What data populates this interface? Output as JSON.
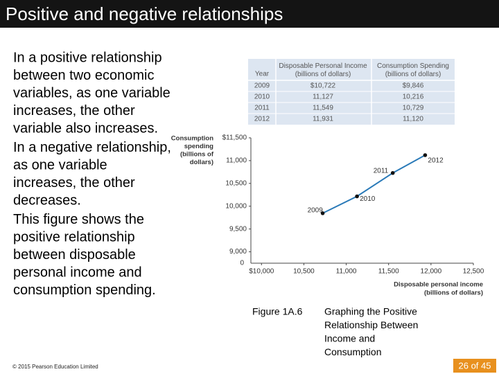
{
  "slide": {
    "title": "Positive and negative relationships",
    "paragraphs": [
      [
        "In a positive relationship",
        "between two economic",
        "variables, as one variable",
        "increases, the other",
        "variable also increases."
      ],
      [
        "In a negative relationship,",
        "as one variable",
        "increases, the other",
        "decreases."
      ],
      [
        "This figure shows the",
        "positive relationship",
        "between disposable",
        "personal income and",
        "consumption spending."
      ]
    ],
    "figure_number": "Figure 1A.6",
    "figure_caption": [
      "Graphing the Positive",
      "Relationship Between",
      "Income and",
      "Consumption"
    ],
    "footer": "© 2015 Pearson Education Limited",
    "page": "26 of 45"
  },
  "table": {
    "header": [
      "Year",
      "Disposable Personal Income (billions of dollars)",
      "Consumption Spending (billions of dollars)"
    ],
    "rows": [
      [
        "2009",
        "$10,722",
        "$9,846"
      ],
      [
        "2010",
        "11,127",
        "10,216"
      ],
      [
        "2011",
        "11,549",
        "10,729"
      ],
      [
        "2012",
        "11,931",
        "11,120"
      ]
    ]
  },
  "chart_data": {
    "type": "line",
    "x_label": [
      "Disposable personal income",
      "(billions of dollars)"
    ],
    "y_label": [
      "Consumption",
      "spending",
      "(billions of",
      "dollars)"
    ],
    "y_origin_label": "0",
    "point_labels": [
      "2009",
      "2010",
      "2011",
      "2012"
    ],
    "x": [
      10722,
      11127,
      11549,
      11931
    ],
    "series": [
      {
        "color": "#2a7ab8",
        "values": [
          9846,
          10216,
          10729,
          11120
        ]
      }
    ],
    "xlim": [
      9875,
      12500
    ],
    "xticks": [
      {
        "value": 10000,
        "label": "$10,000"
      },
      {
        "value": 10500,
        "label": "10,500"
      },
      {
        "value": 11000,
        "label": "11,000"
      },
      {
        "value": 11500,
        "label": "11,500"
      },
      {
        "value": 12000,
        "label": "12,000"
      },
      {
        "value": 12500,
        "label": "12,500"
      }
    ],
    "ylim": [
      8750,
      11500
    ],
    "yticks": [
      {
        "value": 9000,
        "label": "9,000"
      },
      {
        "value": 9500,
        "label": "9,500"
      },
      {
        "value": 10000,
        "label": "10,000"
      },
      {
        "value": 10500,
        "label": "10,500"
      },
      {
        "value": 11000,
        "label": "11,000"
      },
      {
        "value": 11500,
        "label": "$11,500"
      }
    ]
  }
}
